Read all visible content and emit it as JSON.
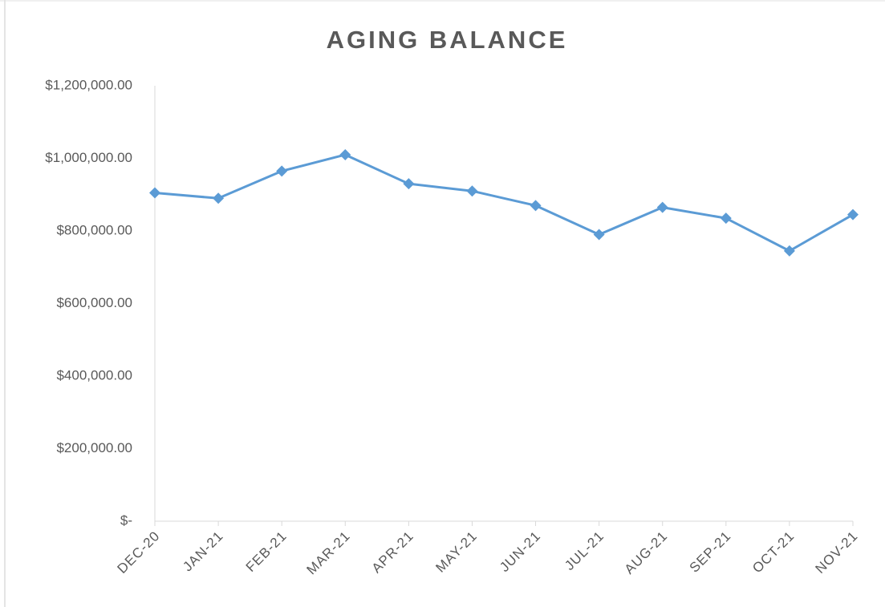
{
  "chart_data": {
    "type": "line",
    "title": "AGING BALANCE",
    "categories": [
      "DEC-20",
      "JAN-21",
      "FEB-21",
      "MAR-21",
      "APR-21",
      "MAY-21",
      "JUN-21",
      "JUL-21",
      "AUG-21",
      "SEP-21",
      "OCT-21",
      "NOV-21"
    ],
    "values": [
      905000,
      890000,
      965000,
      1010000,
      930000,
      910000,
      870000,
      790000,
      865000,
      835000,
      745000,
      845000
    ],
    "color": "#5b9bd5",
    "ylim": [
      0,
      1200000
    ],
    "yticks": [
      {
        "value": 0,
        "label": "$-"
      },
      {
        "value": 200000,
        "label": "$200,000.00"
      },
      {
        "value": 400000,
        "label": "$400,000.00"
      },
      {
        "value": 600000,
        "label": "$600,000.00"
      },
      {
        "value": 800000,
        "label": "$800,000.00"
      },
      {
        "value": 1000000,
        "label": "$1,000,000.00"
      },
      {
        "value": 1200000,
        "label": "$1,200,000.00"
      }
    ],
    "grid": false
  }
}
